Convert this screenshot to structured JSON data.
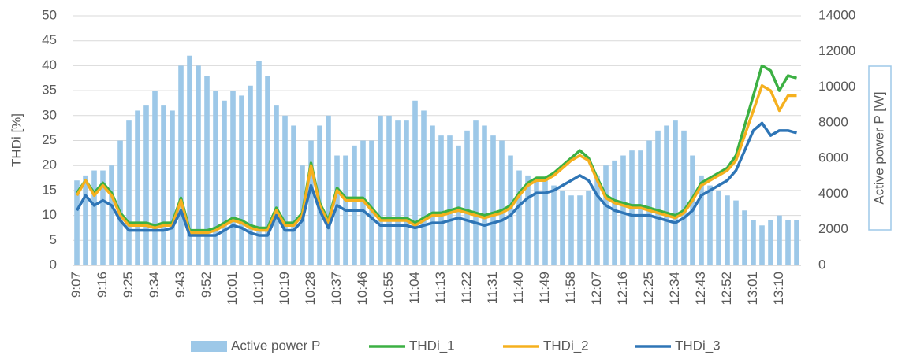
{
  "chart_data": {
    "type": "bar-line",
    "y_label": "THDi [%]",
    "y2_label": "Active power P [W]",
    "categories": [
      "9:07",
      null,
      null,
      "9:16",
      null,
      null,
      "9:25",
      null,
      null,
      "9:34",
      null,
      null,
      "9:43",
      null,
      null,
      "9:52",
      null,
      null,
      "10:01",
      null,
      null,
      "10:10",
      null,
      null,
      "10:19",
      null,
      null,
      "10:28",
      null,
      null,
      "10:37",
      null,
      null,
      "10:46",
      null,
      null,
      "10:55",
      null,
      null,
      "11:04",
      null,
      null,
      "11:13",
      null,
      null,
      "11:22",
      null,
      null,
      "11:31",
      null,
      null,
      "11:40",
      null,
      null,
      "11:49",
      null,
      null,
      "11:58",
      null,
      null,
      "12:07",
      null,
      null,
      "12:16",
      null,
      null,
      "12:25",
      null,
      null,
      "12:34",
      null,
      null,
      "12:43",
      null,
      null,
      "12:52",
      null,
      null,
      "13:01",
      null,
      null,
      "13:10",
      null,
      null
    ],
    "series": [
      {
        "name": "Active power P",
        "type": "bar",
        "axis": "y2",
        "color": "#9dc8e8",
        "values": [
          4760,
          5040,
          5320,
          5320,
          5600,
          7000,
          8120,
          8680,
          8960,
          9800,
          8960,
          8680,
          11200,
          11760,
          11200,
          10640,
          9800,
          9240,
          9800,
          9520,
          10080,
          11480,
          10640,
          8960,
          8400,
          7840,
          5600,
          7000,
          7840,
          8400,
          6160,
          6160,
          6720,
          7000,
          7000,
          8400,
          8400,
          8120,
          8120,
          9240,
          8680,
          7840,
          7280,
          7280,
          6720,
          7560,
          8120,
          7840,
          7280,
          7000,
          6160,
          5320,
          5040,
          4760,
          4760,
          4480,
          4200,
          3920,
          3920,
          4200,
          5040,
          5600,
          5880,
          6160,
          6440,
          6440,
          7000,
          7560,
          7840,
          8120,
          7560,
          6160,
          5040,
          4480,
          4200,
          3920,
          3640,
          3080,
          2520,
          2240,
          2520,
          2800,
          2520,
          2520
        ]
      },
      {
        "name": "THDi_1",
        "type": "line",
        "color": "#3cb043",
        "values": [
          14.5,
          17,
          14.5,
          16.5,
          14.5,
          10.5,
          8.5,
          8.5,
          8.5,
          8,
          8.5,
          8.5,
          13.5,
          7,
          7,
          7,
          7.5,
          8.5,
          9.5,
          9,
          8,
          7.5,
          7.5,
          11.5,
          8.5,
          8.5,
          10.5,
          20.5,
          12.5,
          9,
          15.5,
          13.5,
          13.5,
          13.5,
          11.5,
          9.5,
          9.5,
          9.5,
          9.5,
          8.5,
          9.5,
          10.5,
          10.5,
          11,
          11.5,
          11,
          10.5,
          10,
          10.5,
          11,
          12,
          14.5,
          16.5,
          17.5,
          17.5,
          18.5,
          20,
          21.5,
          23,
          21.5,
          17.5,
          14,
          13,
          12.5,
          12,
          12,
          11.5,
          11,
          10.5,
          10,
          11,
          13.5,
          16.5,
          17.5,
          18.5,
          19.5,
          22,
          28,
          34,
          40,
          39,
          35,
          38,
          37.5
        ]
      },
      {
        "name": "THDi_2",
        "type": "line",
        "color": "#f5b01e",
        "values": [
          14,
          17,
          14,
          16,
          14,
          10,
          8,
          8,
          8,
          7.5,
          8,
          8,
          13,
          6.5,
          6.5,
          6.5,
          7,
          8,
          9,
          8.5,
          7.5,
          7,
          7,
          11,
          8,
          8,
          10,
          20,
          12,
          8.5,
          15,
          13,
          13,
          13,
          11,
          9,
          9,
          9,
          9,
          8,
          9,
          10,
          10,
          10.5,
          11,
          10.5,
          10,
          9.5,
          10,
          10.5,
          11.5,
          14,
          16,
          17,
          17,
          18,
          19.5,
          21,
          22,
          21,
          17,
          13.5,
          12.5,
          12,
          11.5,
          11.5,
          11,
          10.5,
          10,
          9.5,
          10.5,
          13,
          16,
          17,
          18,
          19,
          21,
          26,
          31,
          36,
          35,
          31,
          34,
          34
        ]
      },
      {
        "name": "THDi_3",
        "type": "line",
        "color": "#2e75b6",
        "values": [
          11,
          14,
          12,
          13,
          12,
          9,
          7,
          7,
          7,
          7,
          7,
          7.5,
          11,
          6,
          6,
          6,
          6,
          7,
          8,
          7.5,
          6.5,
          6,
          6,
          10,
          7,
          7,
          9,
          16,
          11,
          7.5,
          12,
          11,
          11,
          11,
          9.5,
          8,
          8,
          8,
          8,
          7.5,
          8,
          8.5,
          8.5,
          9,
          9.5,
          9,
          8.5,
          8,
          8.5,
          9,
          10,
          12,
          13.5,
          14.5,
          14.5,
          15,
          16,
          17,
          18,
          17,
          14,
          12,
          11,
          10.5,
          10,
          10,
          10,
          9.5,
          9,
          8.5,
          9.5,
          11,
          14,
          15,
          16,
          17,
          19,
          23,
          27,
          28.5,
          26,
          27,
          27,
          26.5
        ]
      }
    ],
    "ylim": [
      0,
      50
    ],
    "yticks": [
      0,
      5,
      10,
      15,
      20,
      25,
      30,
      35,
      40,
      45,
      50
    ],
    "y2lim": [
      0,
      14000
    ],
    "y2ticks": [
      0,
      2000,
      4000,
      6000,
      8000,
      10000,
      12000,
      14000
    ],
    "grid": true,
    "legend": "bottom"
  }
}
